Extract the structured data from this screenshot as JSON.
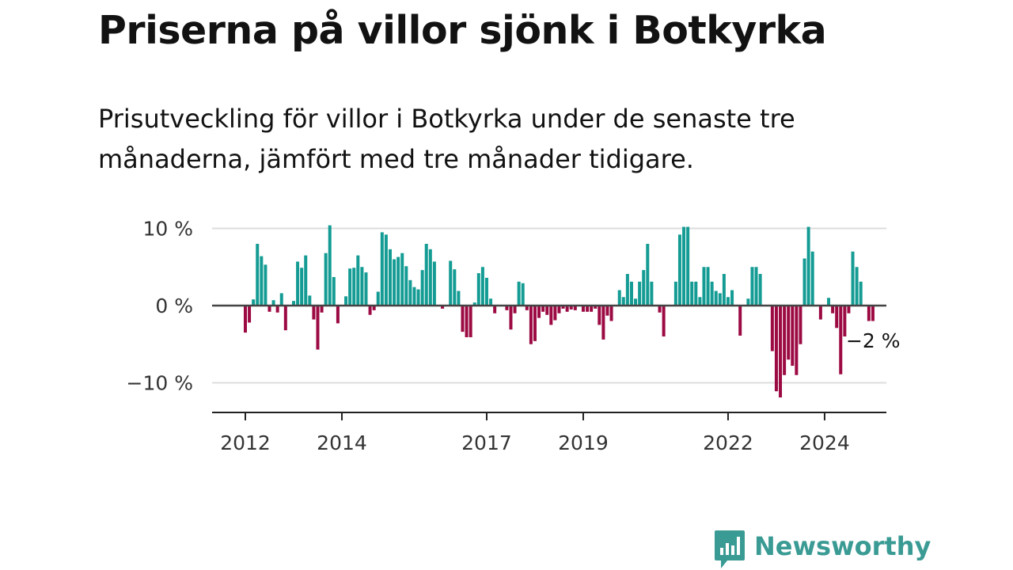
{
  "headline": "Priserna på villor sjönk i Botkyrka",
  "subtitle": "Prisutveckling för villor i Botkyrka under de senaste tre månaderna, jämfört med tre månader tidigare.",
  "brand": {
    "name": "Newsworthy",
    "color": "#3a9b94"
  },
  "colors": {
    "positive": "#149c94",
    "negative": "#9c0a43",
    "zero_line": "#444444",
    "grid": "#dddddd",
    "axis": "#222222"
  },
  "chart_data": {
    "type": "bar",
    "title": "Priserna på villor sjönk i Botkyrka",
    "xlabel": "",
    "ylabel": "",
    "unit": "%",
    "ylim": [
      -14,
      10
    ],
    "y_ticks": [
      {
        "value": 10,
        "label": "10 %"
      },
      {
        "value": 0,
        "label": "0 %"
      },
      {
        "value": -10,
        "label": "−10 %"
      }
    ],
    "x_ticks": [
      {
        "month_index": 0,
        "label": "2012"
      },
      {
        "month_index": 24,
        "label": "2014"
      },
      {
        "month_index": 60,
        "label": "2017"
      },
      {
        "month_index": 84,
        "label": "2019"
      },
      {
        "month_index": 120,
        "label": "2022"
      },
      {
        "month_index": 144,
        "label": "2024"
      }
    ],
    "start": "2012-01",
    "end_label": "−2 %",
    "grid": true,
    "values": [
      -3.5,
      -2.2,
      0.8,
      8.0,
      6.4,
      5.3,
      -0.8,
      0.7,
      -0.9,
      1.6,
      -3.2,
      0,
      0.6,
      5.7,
      4.9,
      6.5,
      1.3,
      -1.8,
      -5.7,
      -0.9,
      6.8,
      10.4,
      3.7,
      -2.3,
      0,
      1.2,
      4.8,
      4.9,
      6.5,
      5.0,
      4.3,
      -1.2,
      -0.6,
      1.8,
      9.5,
      9.2,
      7.3,
      6.0,
      6.3,
      6.8,
      5.1,
      3.3,
      2.4,
      2.1,
      4.6,
      8.0,
      7.3,
      5.7,
      0,
      -0.4,
      0,
      5.8,
      4.7,
      1.9,
      -3.4,
      -4.1,
      -4.1,
      0.4,
      4.2,
      5.0,
      3.6,
      0.9,
      -1.0,
      0,
      0,
      -0.6,
      -3.1,
      -1.0,
      3.1,
      2.9,
      -0.6,
      -5.0,
      -4.6,
      -1.6,
      -0.8,
      -1.2,
      -2.5,
      -1.9,
      -1.0,
      -0.4,
      -0.8,
      -0.5,
      -0.6,
      0,
      -0.8,
      -0.8,
      -0.8,
      -0.4,
      -2.5,
      -4.4,
      -1.3,
      -2.0,
      0,
      2.0,
      1.1,
      4.1,
      3.1,
      0.9,
      3.1,
      4.6,
      8.0,
      3.1,
      0,
      -0.9,
      -4.0,
      0,
      0,
      3.1,
      9.2,
      10.2,
      10.2,
      3.1,
      3.1,
      1.1,
      5.0,
      5.0,
      3.1,
      1.9,
      1.6,
      4.1,
      1.1,
      2.0,
      0,
      -3.9,
      0,
      0.9,
      5.0,
      5.0,
      4.1,
      0,
      0,
      -5.9,
      -11.1,
      -11.9,
      -9.0,
      -7.0,
      -7.8,
      -9.0,
      -5.0,
      6.1,
      10.2,
      7.0,
      0,
      -1.8,
      0,
      1.0,
      -1.0,
      -2.9,
      -8.9,
      -4.0,
      -1.0,
      7.0,
      5.0,
      3.1,
      0,
      -2.0,
      -2.0
    ]
  }
}
